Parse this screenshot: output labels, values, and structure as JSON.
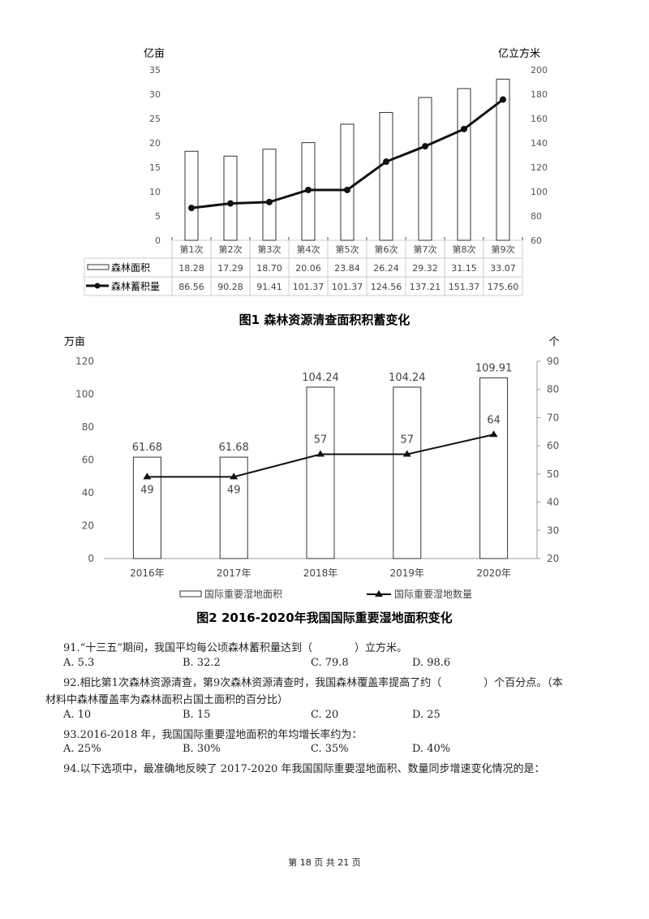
{
  "chart_data": [
    {
      "type": "bar",
      "title": "图1 森林资源清查面积积蓄变化",
      "categories": [
        "第1次",
        "第2次",
        "第3次",
        "第4次",
        "第5次",
        "第6次",
        "第7次",
        "第8次",
        "第9次"
      ],
      "series": [
        {
          "name": "森林面积",
          "type": "bar",
          "axis": "left",
          "values": [
            18.28,
            17.29,
            18.7,
            20.06,
            23.84,
            26.24,
            29.32,
            31.15,
            33.07
          ]
        },
        {
          "name": "森林蓄积量",
          "type": "line",
          "axis": "right",
          "values": [
            86.56,
            90.28,
            91.41,
            101.37,
            101.37,
            124.56,
            137.21,
            151.37,
            175.6
          ]
        }
      ],
      "ylabel": "亿亩",
      "y2label": "亿立方米",
      "ylim": [
        0,
        35
      ],
      "y2lim": [
        60,
        200
      ],
      "yticks": [
        0,
        5,
        10,
        15,
        20,
        25,
        30,
        35
      ],
      "y2ticks": [
        60,
        80,
        100,
        120,
        140,
        160,
        180,
        200
      ],
      "table_values": [
        [
          "18.28",
          "17.29",
          "18.70",
          "20.06",
          "23.84",
          "26.24",
          "29.32",
          "31.15",
          "33.07"
        ],
        [
          "86.56",
          "90.28",
          "91.41",
          "101.37",
          "101.37",
          "124.56",
          "137.21",
          "151.37",
          "175.60"
        ]
      ],
      "legend": "data-table"
    },
    {
      "type": "bar",
      "title": "图2 2016-2020年我国国际重要湿地面积变化",
      "categories": [
        "2016年",
        "2017年",
        "2018年",
        "2019年",
        "2020年"
      ],
      "series": [
        {
          "name": "国际重要湿地面积",
          "type": "bar",
          "axis": "left",
          "values": [
            61.68,
            61.68,
            104.24,
            104.24,
            109.91
          ],
          "labels": [
            "61.68",
            "61.68",
            "104.24",
            "104.24",
            "109.91"
          ]
        },
        {
          "name": "国际重要湿地数量",
          "type": "line",
          "axis": "right",
          "values": [
            49,
            49,
            57,
            57,
            64
          ],
          "labels": [
            "49",
            "49",
            "57",
            "57",
            "64"
          ]
        }
      ],
      "ylabel": "万亩",
      "y2label": "个",
      "ylim": [
        0,
        120
      ],
      "y2lim": [
        20,
        90
      ],
      "yticks": [
        0,
        20,
        40,
        60,
        80,
        100,
        120
      ],
      "y2ticks": [
        20,
        30,
        40,
        50,
        60,
        70,
        80,
        90
      ],
      "legend": "bottom"
    }
  ],
  "questions": [
    {
      "text": "91.“十三五”期间，我国平均每公顷森林蓄积量达到（　　　　）立方米。",
      "options": [
        "A. 5.3",
        "B. 32.2",
        "C. 79.8",
        "D. 98.6"
      ]
    },
    {
      "text": "92.相比第1次森林资源清查，第9次森林资源清查时，我国森林覆盖率提高了约（　　　　）个百分点。（本",
      "text2": "材料中森林覆盖率为森林面积占国土面积的百分比）",
      "options": [
        "A. 10",
        "B. 15",
        "C. 20",
        "D. 25"
      ]
    },
    {
      "text": "93.2016-2018 年，我国国际重要湿地面积的年均增长率约为：",
      "options": [
        "A. 25%",
        "B. 30%",
        "C. 35%",
        "D. 40%"
      ]
    },
    {
      "text": "94.以下选项中，最准确地反映了 2017-2020 年我国国际重要湿地面积、数量同步增速变化情况的是："
    }
  ],
  "footer": "第 18 页 共 21 页"
}
